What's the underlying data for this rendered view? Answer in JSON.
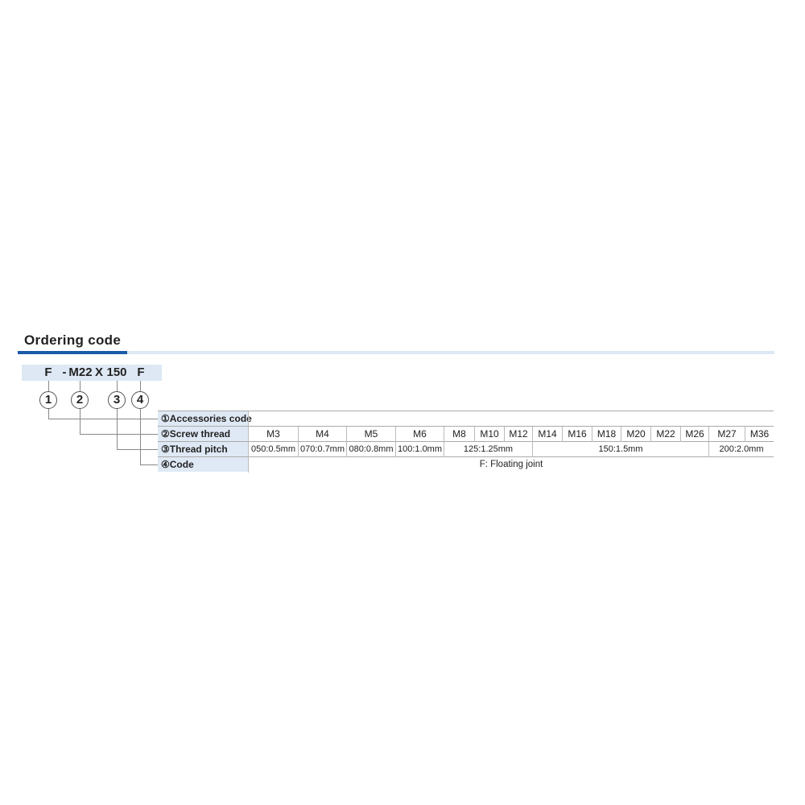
{
  "section_title": "Ordering code",
  "code": {
    "parts": [
      "F",
      "-",
      "M22",
      "X",
      "150",
      "F"
    ]
  },
  "circles": [
    "1",
    "2",
    "3",
    "4"
  ],
  "table": {
    "labels": [
      "①Accessories code",
      "②Screw thread",
      "③Thread pitch",
      "④Code"
    ],
    "accessories_code": "",
    "screw_threads": [
      "M3",
      "M4",
      "M5",
      "M6",
      "M8",
      "M10",
      "M12",
      "M14",
      "M16",
      "M18",
      "M20",
      "M22",
      "M26",
      "M27",
      "M36"
    ],
    "thread_pitches": [
      "050:0.5mm",
      "070:0.7mm",
      "080:0.8mm",
      "100:1.0mm",
      "125:1.25mm",
      "150:1.5mm",
      "200:2.0mm"
    ],
    "code_value": "F: Floating joint"
  },
  "colors": {
    "accent": "#1b5aa6",
    "light": "#dde8f5"
  }
}
